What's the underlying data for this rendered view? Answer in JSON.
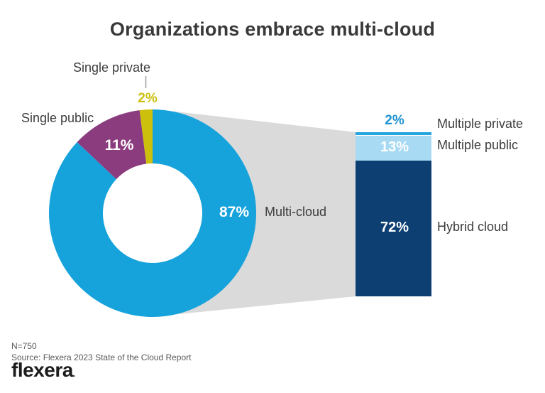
{
  "title": "Organizations embrace multi-cloud",
  "chart_data": {
    "type": "pie",
    "subtype": "donut-with-stacked-bar-breakout",
    "title": "Organizations embrace multi-cloud",
    "donut": {
      "total": 100,
      "series": [
        {
          "label": "Multi-cloud",
          "value": 87,
          "value_label": "87%",
          "color": "#16a2db"
        },
        {
          "label": "Single public",
          "value": 11,
          "value_label": "11%",
          "color": "#8b3c7f"
        },
        {
          "label": "Single private",
          "value": 2,
          "value_label": "2%",
          "color": "#ccc00d"
        }
      ]
    },
    "bar": {
      "description": "Breakout of the 87% multi-cloud slice",
      "total": 87,
      "series": [
        {
          "label": "Multiple private",
          "value": 2,
          "value_label": "2%",
          "color": "#27a5de",
          "label_color": "#1e93d2"
        },
        {
          "label": "Multiple public",
          "value": 13,
          "value_label": "13%",
          "color": "#a9daf3"
        },
        {
          "label": "Hybrid cloud",
          "value": 72,
          "value_label": "72%",
          "color": "#0d3f73"
        }
      ]
    },
    "layout": {
      "legend": "none",
      "grid": false,
      "connector_color": "#dadada"
    }
  },
  "footer": {
    "n_label": "N=750",
    "source": "Source: Flexera 2023 State of the Cloud Report",
    "logo": "flexera",
    "logo_suffix": "."
  }
}
